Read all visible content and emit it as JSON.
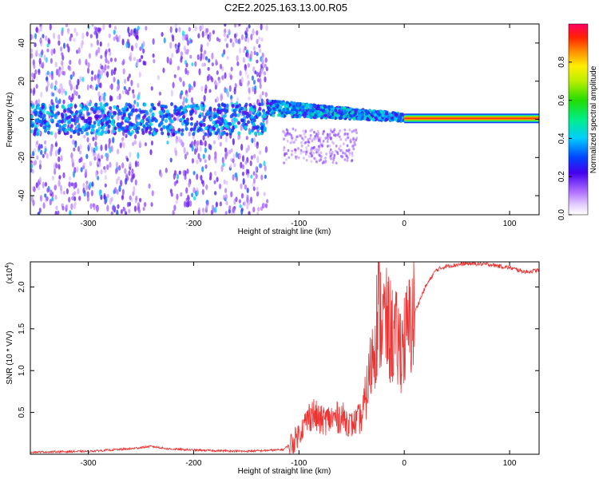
{
  "title": "C2E2.2025.163.13.00.R05",
  "chart_data": [
    {
      "type": "heatmap",
      "name": "spectrogram",
      "xlabel": "Height of straight line (km)",
      "ylabel": "Frequency (Hz)",
      "xlim": [
        -355,
        128
      ],
      "ylim": [
        -50,
        50
      ],
      "x_ticks": [
        -300,
        -200,
        -100,
        0,
        100
      ],
      "y_ticks": [
        -40,
        -20,
        0,
        20,
        40
      ],
      "x_tick_labels": [
        "-300",
        "-200",
        "-100",
        "0",
        "100"
      ],
      "y_tick_labels": [
        "-40",
        "-20",
        "0",
        "20",
        "40"
      ],
      "description_regions": [
        {
          "x_range": [
            -355,
            -130
          ],
          "freq_range": [
            -50,
            50
          ],
          "amplitude": 0.15
        },
        {
          "x_range": [
            -130,
            0
          ],
          "freq_range": [
            -15,
            12
          ],
          "amplitude": 0.35
        },
        {
          "x_range": [
            0,
            128
          ],
          "freq_range": [
            -1,
            1
          ],
          "amplitude": 0.95
        }
      ],
      "colorbar": {
        "label": "Normalized spectral amplitude",
        "range": [
          0,
          1
        ],
        "ticks": [
          0.0,
          0.2,
          0.4,
          0.6,
          0.8
        ],
        "tick_labels": [
          "0.0",
          "0.2",
          "0.4",
          "0.6",
          "0.8"
        ]
      }
    },
    {
      "type": "line",
      "name": "snr",
      "xlabel": "Height of straight line (km)",
      "ylabel": "SNR (10 * V/V)",
      "y_multiplier": "(x10",
      "y_multiplier_exp": "4",
      "y_multiplier_close": ")",
      "xlim": [
        -355,
        128
      ],
      "ylim": [
        0,
        23000
      ],
      "x_ticks": [
        -300,
        -200,
        -100,
        0,
        100
      ],
      "y_ticks": [
        5000,
        10000,
        15000,
        20000
      ],
      "x_tick_labels": [
        "-300",
        "-200",
        "-100",
        "0",
        "100"
      ],
      "y_tick_labels": [
        "0.5",
        "1.0",
        "1.5",
        "2.0"
      ],
      "series": [
        {
          "name": "SNR",
          "color": "#ee3333",
          "x": [
            -355,
            -300,
            -260,
            -240,
            -225,
            -200,
            -150,
            -115,
            -105,
            -95,
            -88,
            -80,
            -70,
            -60,
            -50,
            -40,
            -35,
            -30,
            -25,
            -20,
            -15,
            -10,
            -5,
            0,
            10,
            20,
            30,
            40,
            60,
            80,
            100,
            115,
            128
          ],
          "y": [
            200,
            300,
            600,
            900,
            600,
            450,
            300,
            500,
            1500,
            3500,
            5000,
            4000,
            4200,
            4500,
            3500,
            4500,
            8000,
            12000,
            17000,
            16000,
            15000,
            14000,
            13000,
            13500,
            17000,
            20000,
            22000,
            22500,
            22800,
            22700,
            22300,
            21800,
            22000
          ]
        }
      ]
    }
  ]
}
